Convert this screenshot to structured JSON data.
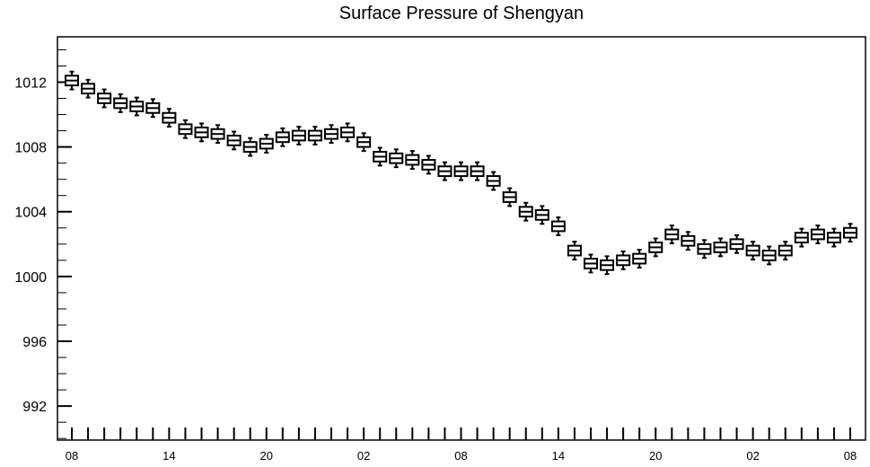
{
  "chart_data": {
    "type": "box",
    "title": "Surface Pressure of Shengyan",
    "xlabel": "",
    "ylabel": "",
    "ylim": [
      989.9,
      1014.8
    ],
    "yticks": [
      992,
      996,
      1000,
      1004,
      1008,
      1012
    ],
    "xtick_labels": [
      "08",
      "14",
      "20",
      "02",
      "08",
      "14",
      "20",
      "02",
      "08"
    ],
    "xtick_every_n_boxes": 6,
    "series": [
      {
        "values": [
          1012.1,
          1011.6,
          1011.0,
          1010.7,
          1010.5,
          1010.4,
          1009.8,
          1009.1,
          1008.9,
          1008.8,
          1008.4,
          1008.0,
          1008.2,
          1008.6,
          1008.7,
          1008.7,
          1008.8,
          1008.9,
          1008.3,
          1007.4,
          1007.3,
          1007.2,
          1006.9,
          1006.5,
          1006.5,
          1006.5,
          1005.9,
          1004.9,
          1004.0,
          1003.8,
          1003.1,
          1001.6,
          1000.8,
          1000.7,
          1001.0,
          1001.1,
          1001.8,
          1002.6,
          1002.2,
          1001.7,
          1001.8,
          1002.0,
          1001.6,
          1001.3,
          1001.6,
          1002.4,
          1002.6,
          1002.4,
          1002.7
        ],
        "whisker_half_range": 0.55,
        "box_half_range": 0.3
      }
    ],
    "grid": false,
    "legend": "none",
    "colors": {
      "box_fill": "#ffffff",
      "box_stroke": "#000000",
      "axis": "#000000"
    }
  }
}
